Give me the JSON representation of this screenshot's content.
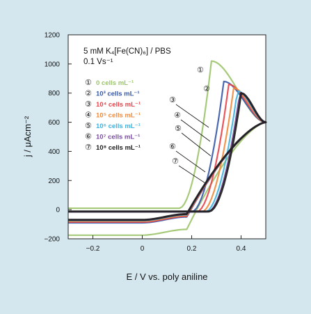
{
  "chart_data": {
    "type": "line",
    "title": "",
    "xlabel": "E / V vs. poly aniline",
    "ylabel": "j / μAcm⁻²",
    "xlim": [
      -0.3,
      0.5
    ],
    "ylim": [
      -200,
      1200
    ],
    "x_ticks": [
      -0.2,
      0,
      0.2,
      0.4
    ],
    "x_tick_labels": [
      "−0.2",
      "0",
      "0.2",
      "0.4"
    ],
    "y_ticks": [
      -200,
      0,
      200,
      400,
      600,
      800,
      1000,
      1200
    ],
    "y_tick_labels": [
      "−200",
      "0",
      "200",
      "400",
      "600",
      "800",
      "1000",
      "1200"
    ],
    "grid": false,
    "legend_position": "top-left",
    "annotation": {
      "line1": "5 mM K₄[Fe(CN)₆] / PBS",
      "line2": "0.1 Vs⁻¹"
    },
    "series": [
      {
        "marker": "①",
        "name": "0  cells mL⁻¹",
        "color": "#9cc46a",
        "ox_peak": [
          0.28,
          1020
        ],
        "red_peak": [
          0.0,
          -175
        ],
        "baseline_low": -175,
        "baseline_high": 10
      },
      {
        "marker": "②",
        "name": "10³ cells mL⁻¹",
        "color": "#3658a8",
        "ox_peak": [
          0.33,
          880
        ],
        "red_peak": [
          0.0,
          -90
        ],
        "baseline_low": -90,
        "baseline_high": -15
      },
      {
        "marker": "③",
        "name": "10⁴ cells mL⁻¹",
        "color": "#e8434b",
        "ox_peak": [
          0.35,
          860
        ],
        "red_peak": [
          0.0,
          -85
        ],
        "baseline_low": -85,
        "baseline_high": -15
      },
      {
        "marker": "④",
        "name": "10⁵ cells mL⁻¹",
        "color": "#f08a3c",
        "ox_peak": [
          0.37,
          835
        ],
        "red_peak": [
          0.0,
          -80
        ],
        "baseline_low": -80,
        "baseline_high": -15
      },
      {
        "marker": "⑤",
        "name": "10⁶ cells mL⁻¹",
        "color": "#3fb2df",
        "ox_peak": [
          0.385,
          815
        ],
        "red_peak": [
          0.0,
          -75
        ],
        "baseline_low": -75,
        "baseline_high": -15
      },
      {
        "marker": "⑥",
        "name": "10⁷ cells mL⁻¹",
        "color": "#7b4fa0",
        "ox_peak": [
          0.395,
          805
        ],
        "red_peak": [
          0.0,
          -72
        ],
        "baseline_low": -72,
        "baseline_high": -15
      },
      {
        "marker": "⑦",
        "name": "10⁸ cells mL⁻¹",
        "color": "#1b1b1b",
        "ox_peak": [
          0.4,
          800
        ],
        "red_peak": [
          0.0,
          -70
        ],
        "baseline_low": -70,
        "baseline_high": -12
      }
    ],
    "curve_labels": [
      "①",
      "②",
      "③",
      "④",
      "⑤",
      "⑥",
      "⑦"
    ]
  }
}
